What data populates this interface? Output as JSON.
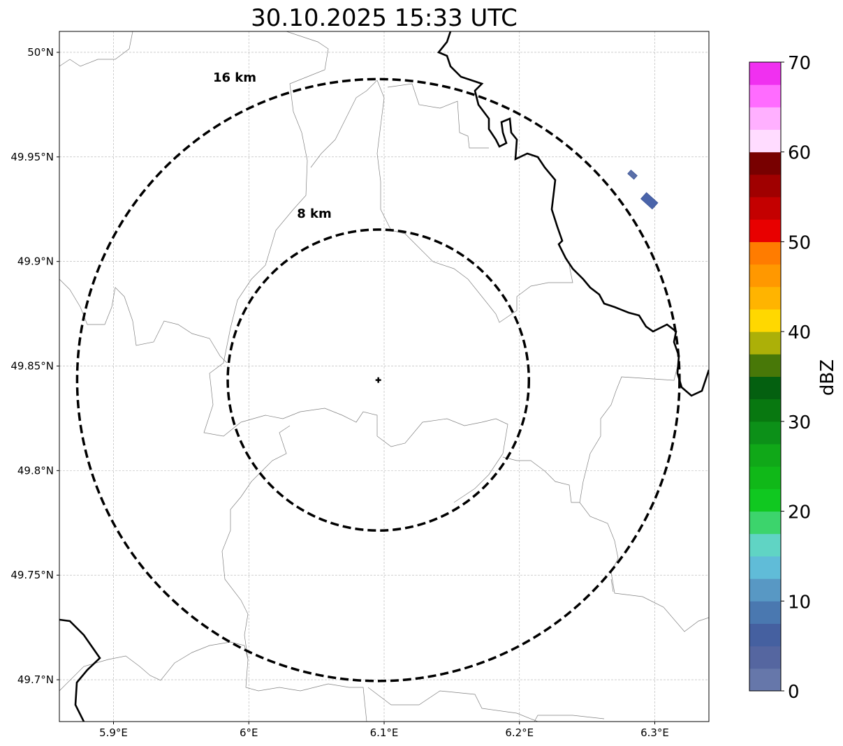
{
  "chart_data": {
    "type": "heatmap",
    "title": "30.10.2025 15:33 UTC",
    "xlabel": "",
    "ylabel": "",
    "xlim": [
      5.86,
      6.34
    ],
    "ylim": [
      49.68,
      50.01
    ],
    "grid": true,
    "x_ticks": [
      {
        "value": 5.9,
        "label": "5.9°E"
      },
      {
        "value": 6.0,
        "label": "6°E"
      },
      {
        "value": 6.1,
        "label": "6.1°E"
      },
      {
        "value": 6.2,
        "label": "6.2°E"
      },
      {
        "value": 6.3,
        "label": "6.3°E"
      }
    ],
    "y_ticks": [
      {
        "value": 50.0,
        "label": "50°N"
      },
      {
        "value": 49.95,
        "label": "49.95°N"
      },
      {
        "value": 49.9,
        "label": "49.9°N"
      },
      {
        "value": 49.85,
        "label": "49.85°N"
      },
      {
        "value": 49.8,
        "label": "49.8°N"
      },
      {
        "value": 49.75,
        "label": "49.75°N"
      },
      {
        "value": 49.7,
        "label": "49.7°N"
      }
    ],
    "radar_center": {
      "lon": 6.0957,
      "lat": 49.8433
    },
    "range_rings": [
      {
        "radius_km": 8,
        "label": "8 km"
      },
      {
        "radius_km": 16,
        "label": "16 km"
      }
    ],
    "echoes": [
      {
        "lon": 6.2835,
        "lat": 49.9415,
        "dbz": 4,
        "color": "#5a6fa8"
      },
      {
        "lon": 6.296,
        "lat": 49.929,
        "dbz": 6,
        "color": "#4a64aa"
      }
    ],
    "colorbar": {
      "label": "dBZ",
      "range": [
        0,
        70
      ],
      "step": 2.5,
      "ticks": [
        "0",
        "10",
        "20",
        "30",
        "40",
        "50",
        "60",
        "70"
      ],
      "colors": [
        "#6677aa",
        "#5566a0",
        "#4560a0",
        "#4a78b0",
        "#5898c4",
        "#60bcd8",
        "#60d4c4",
        "#3cd46c",
        "#10c820",
        "#10b818",
        "#10a818",
        "#0c9018",
        "#087810",
        "#046010",
        "#487808",
        "#acb008",
        "#ffd800",
        "#ffb400",
        "#ff9800",
        "#ff7c00",
        "#e80000",
        "#c40000",
        "#a00000",
        "#780000",
        "#ffdcff",
        "#ffb0ff",
        "#ff6cff",
        "#f030f0"
      ]
    }
  }
}
